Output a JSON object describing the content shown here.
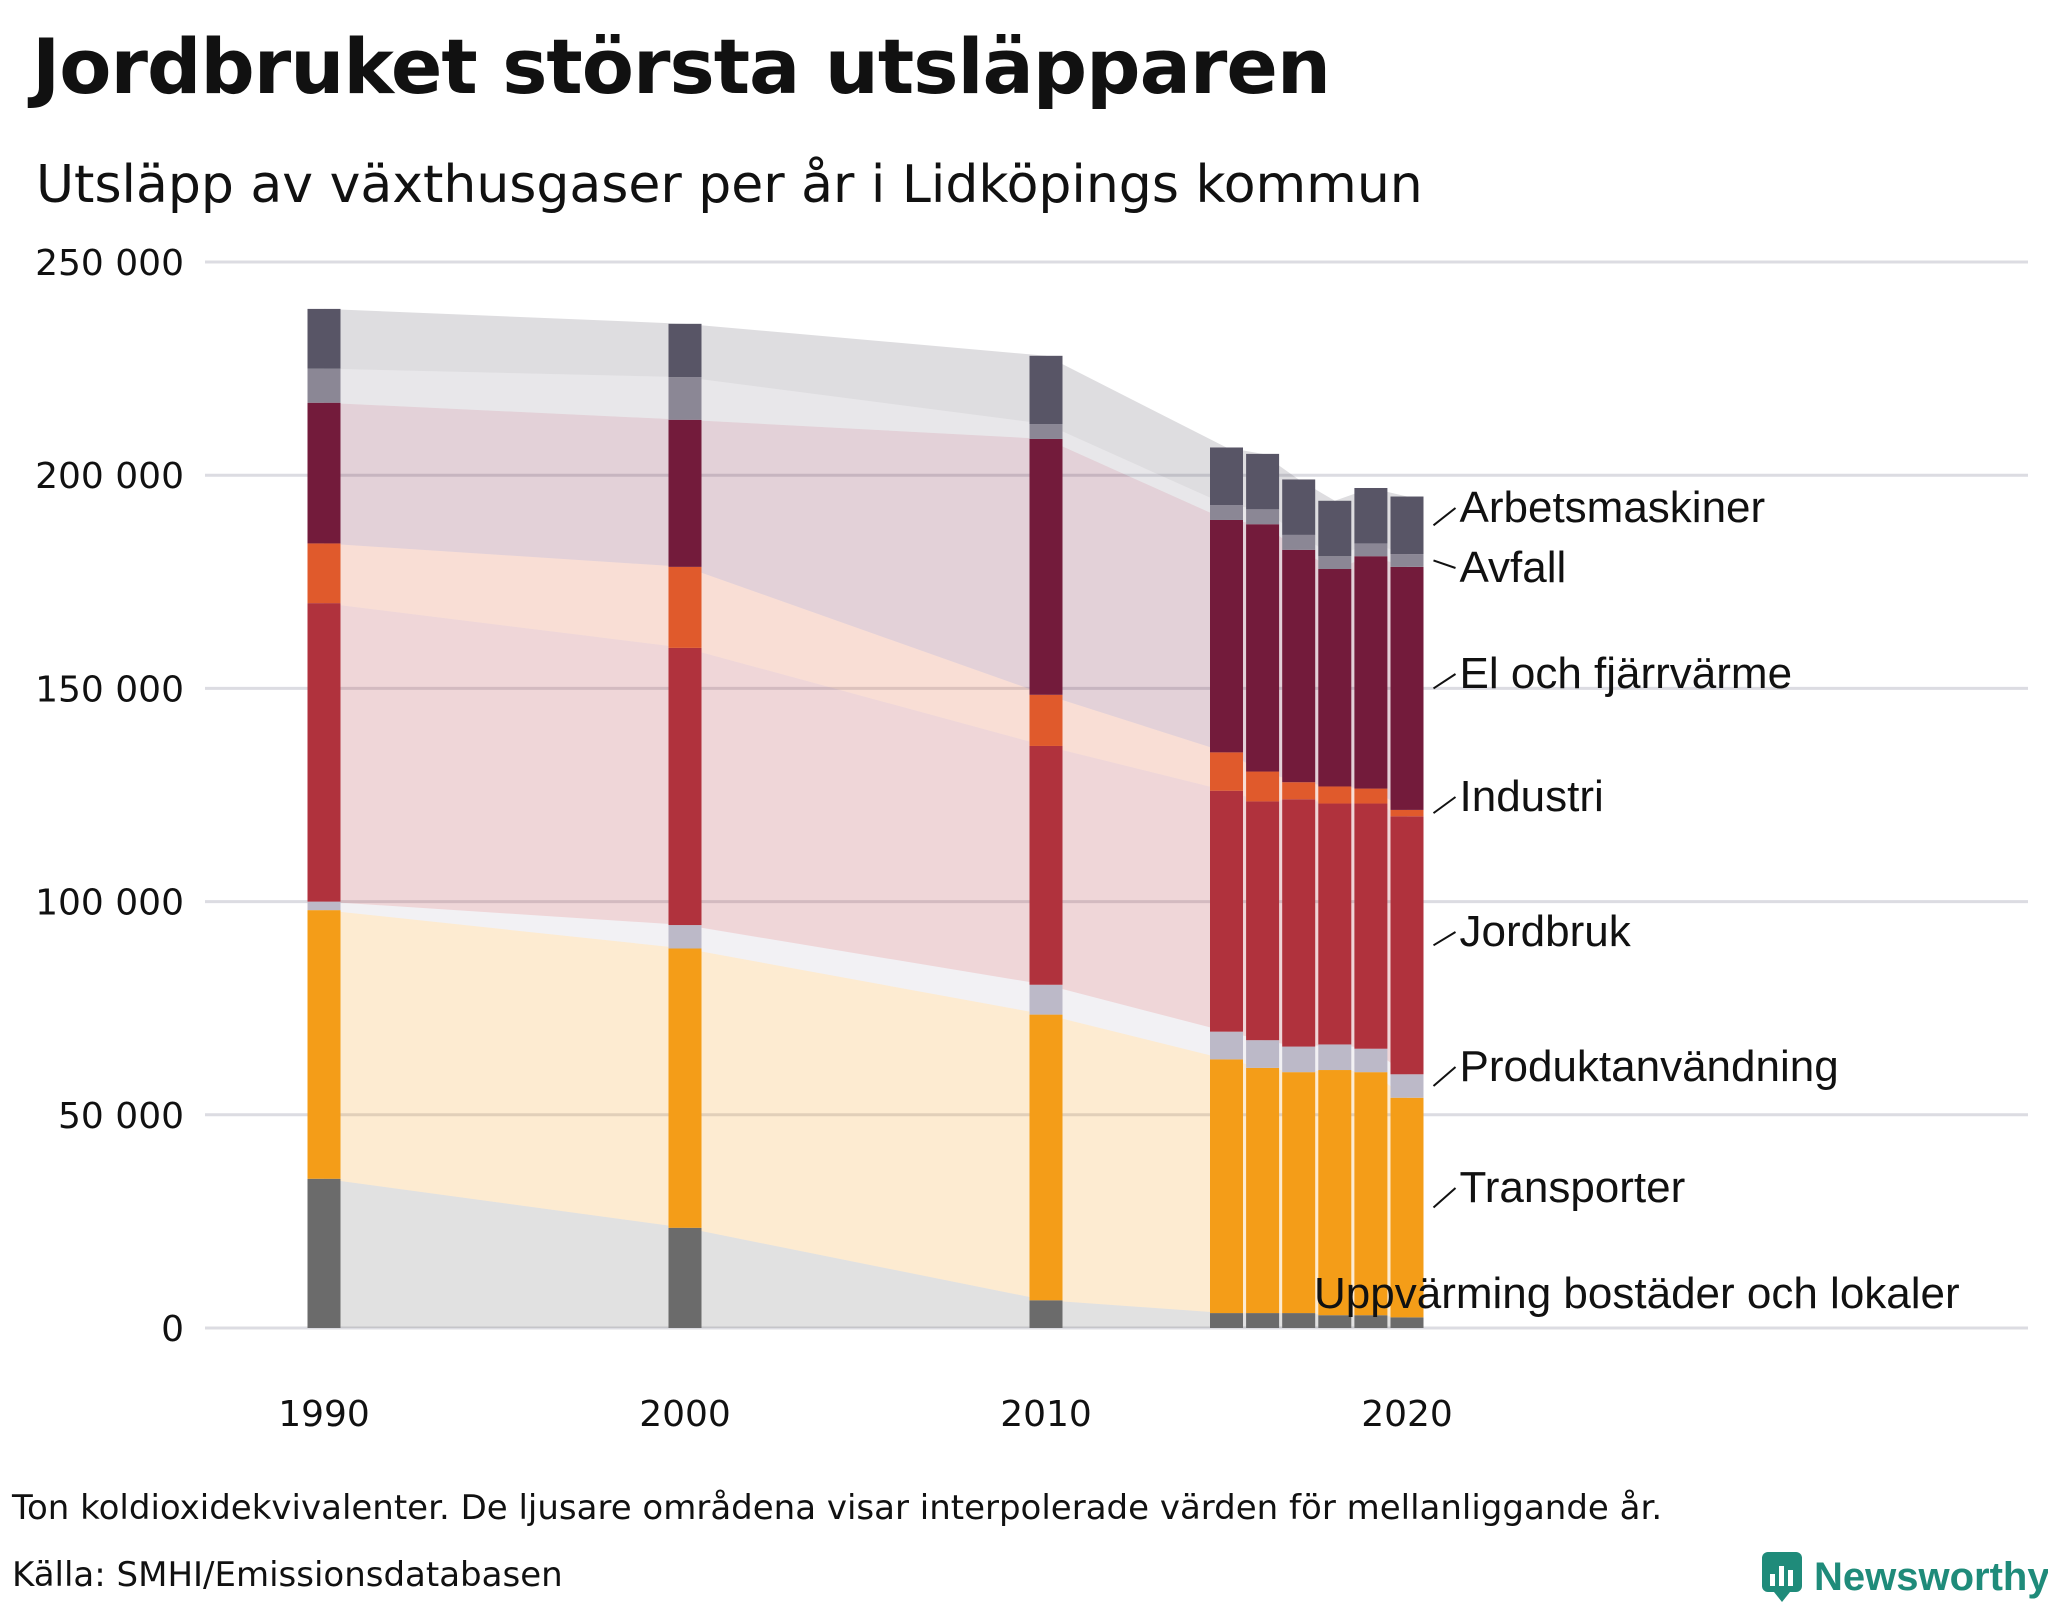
{
  "title": "Jordbruket största utsläpparen",
  "subtitle": "Utsläpp av växthusgaser per år i Lidköpings kommun",
  "note": "Ton koldioxidekvivalenter. De ljusare områdena visar interpolerade värden för mellanliggande år.",
  "source": "Källa: SMHI/Emissionsdatabasen",
  "brand": "Newsworthy",
  "chart_data": {
    "type": "bar",
    "stacked": true,
    "interpolated_areas": true,
    "x": [
      1990,
      2000,
      2010,
      2015,
      2016,
      2017,
      2018,
      2019,
      2020
    ],
    "x_ticks": [
      "1990",
      "2000",
      "2010",
      "2020"
    ],
    "y_ticks": [
      "0",
      "50 000",
      "100 000",
      "150 000",
      "200 000",
      "250 000"
    ],
    "ylim": [
      0,
      250000
    ],
    "grid": true,
    "series": [
      {
        "name": "Uppvärming bostäder och lokaler",
        "color": "#6b6b6b",
        "values": [
          35000,
          23500,
          6500,
          3500,
          3500,
          3500,
          3000,
          3000,
          2500
        ]
      },
      {
        "name": "Transporter",
        "color": "#f49d18",
        "values": [
          63000,
          65500,
          67000,
          59500,
          57500,
          56500,
          57500,
          57000,
          51500
        ]
      },
      {
        "name": "Produktanvändning",
        "color": "#bcb9c8",
        "values": [
          2000,
          5500,
          7000,
          6500,
          6500,
          6000,
          6000,
          5500,
          5500
        ]
      },
      {
        "name": "Jordbruk",
        "color": "#b0323d",
        "values": [
          70000,
          65000,
          56000,
          56500,
          56000,
          58000,
          56500,
          57500,
          60500
        ]
      },
      {
        "name": "Industri",
        "color": "#e05a2c",
        "values": [
          14000,
          19000,
          12000,
          9000,
          7000,
          4000,
          4000,
          3500,
          1500
        ]
      },
      {
        "name": "El och fjärrvärme",
        "color": "#731b3b",
        "values": [
          33000,
          34500,
          60000,
          54500,
          58000,
          54500,
          51000,
          54500,
          57000
        ]
      },
      {
        "name": "Avfall",
        "color": "#8b8795",
        "values": [
          8000,
          10000,
          3500,
          3500,
          3500,
          3500,
          3000,
          3000,
          3000
        ]
      },
      {
        "name": "Arbetsmaskiner",
        "color": "#585566",
        "values": [
          14000,
          12500,
          16000,
          13500,
          13000,
          13000,
          13000,
          13000,
          13500
        ]
      }
    ]
  }
}
